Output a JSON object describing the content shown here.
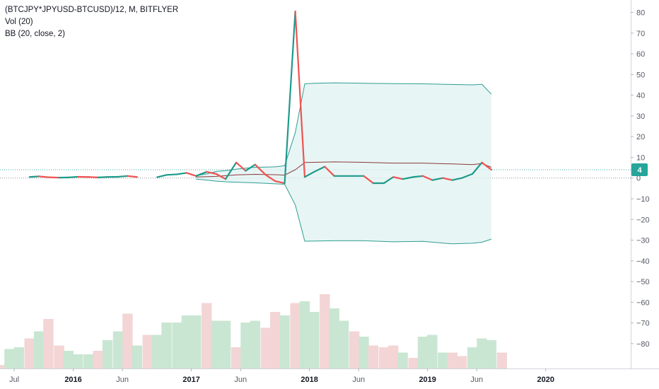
{
  "legend": {
    "symbol": "(BTCJPY*JPYUSD-BTCUSD)/12, M, BITFLYER",
    "volume": "Vol (20)",
    "bb": "BB (20, close, 2)"
  },
  "colors": {
    "up": "#26a69a",
    "down": "#ef5350",
    "line_up": "#1e9a8a",
    "bb_band": "#2e9e92",
    "bb_basis": "#8b3a3a",
    "bb_fill": "#e0f2f1",
    "vol_up": "#c9e6d2",
    "vol_down": "#f3d5d5",
    "badge": "#26a69a"
  },
  "chart_data": {
    "type": "line",
    "y_ticks": [
      80,
      70,
      60,
      50,
      40,
      30,
      20,
      10,
      0,
      -10,
      -20,
      -30,
      -40,
      -50,
      -60,
      -70,
      -80
    ],
    "y_tick_labels": [
      "80",
      "70",
      "60",
      "50",
      "40",
      "30",
      "20",
      "10",
      "0",
      "−10",
      "−20",
      "−30",
      "−40",
      "−50",
      "−60",
      "−70",
      "−80"
    ],
    "ylim": [
      -92,
      86
    ],
    "x_ticks": [
      {
        "t": 2015.5,
        "label": "Jul",
        "year": false
      },
      {
        "t": 2016.0,
        "label": "2016",
        "year": true
      },
      {
        "t": 2016.4167,
        "label": "Jun",
        "year": false
      },
      {
        "t": 2017.0,
        "label": "2017",
        "year": true
      },
      {
        "t": 2017.4167,
        "label": "Jun",
        "year": false
      },
      {
        "t": 2018.0,
        "label": "2018",
        "year": true
      },
      {
        "t": 2018.4167,
        "label": "Jun",
        "year": false
      },
      {
        "t": 2019.0,
        "label": "2019",
        "year": true
      },
      {
        "t": 2019.4167,
        "label": "Jun",
        "year": false
      },
      {
        "t": 2020.0,
        "label": "2020",
        "year": true
      }
    ],
    "xlim": [
      2015.38,
      2020.72
    ],
    "price_segments": [
      [
        [
          2015.63,
          0.5
        ],
        [
          2015.71,
          0.8
        ],
        [
          2015.79,
          0.4
        ],
        [
          2015.88,
          0.2
        ],
        [
          2015.96,
          0.3
        ],
        [
          2016.04,
          0.6
        ],
        [
          2016.13,
          0.5
        ],
        [
          2016.21,
          0.3
        ],
        [
          2016.29,
          0.5
        ],
        [
          2016.38,
          0.6
        ],
        [
          2016.46,
          1.0
        ],
        [
          2016.54,
          0.5
        ]
      ],
      [
        [
          2016.71,
          0.4
        ],
        [
          2016.79,
          1.5
        ],
        [
          2016.88,
          1.8
        ],
        [
          2016.96,
          2.5
        ],
        [
          2017.04,
          1.0
        ],
        [
          2017.13,
          3.0
        ],
        [
          2017.21,
          2.0
        ],
        [
          2017.29,
          -0.5
        ],
        [
          2017.38,
          7.5
        ],
        [
          2017.46,
          3.5
        ],
        [
          2017.54,
          6.5
        ],
        [
          2017.63,
          1.5
        ],
        [
          2017.71,
          -1.5
        ],
        [
          2017.79,
          -2.5
        ],
        [
          2017.88,
          80.5
        ],
        [
          2017.96,
          0.5
        ],
        [
          2018.04,
          3.0
        ],
        [
          2018.13,
          5.5
        ],
        [
          2018.21,
          1.0
        ],
        [
          2018.29,
          1.0
        ],
        [
          2018.38,
          1.0
        ],
        [
          2018.46,
          1.0
        ],
        [
          2018.54,
          -2.5
        ],
        [
          2018.63,
          -2.5
        ],
        [
          2018.71,
          0.5
        ],
        [
          2018.79,
          -0.5
        ],
        [
          2018.88,
          0.5
        ],
        [
          2018.96,
          1.0
        ],
        [
          2019.04,
          -1.0
        ],
        [
          2019.13,
          0.0
        ],
        [
          2019.21,
          -1.0
        ],
        [
          2019.29,
          0.0
        ],
        [
          2019.38,
          2.0
        ],
        [
          2019.46,
          7.5
        ],
        [
          2019.54,
          4.0
        ]
      ]
    ],
    "bb_upper": [
      [
        2017.04,
        1.2
      ],
      [
        2017.13,
        2.0
      ],
      [
        2017.21,
        3.2
      ],
      [
        2017.29,
        3.6
      ],
      [
        2017.38,
        4.3
      ],
      [
        2017.46,
        4.8
      ],
      [
        2017.54,
        5.2
      ],
      [
        2017.63,
        5.3
      ],
      [
        2017.71,
        5.4
      ],
      [
        2017.79,
        6.0
      ],
      [
        2017.88,
        22.0
      ],
      [
        2017.96,
        45.5
      ],
      [
        2018.04,
        45.8
      ],
      [
        2018.21,
        46.0
      ],
      [
        2018.46,
        45.8
      ],
      [
        2018.71,
        45.6
      ],
      [
        2018.96,
        45.5
      ],
      [
        2019.21,
        45.2
      ],
      [
        2019.38,
        45.0
      ],
      [
        2019.46,
        45.3
      ],
      [
        2019.54,
        40.5
      ]
    ],
    "bb_basis": [
      [
        2017.04,
        0.5
      ],
      [
        2017.21,
        0.8
      ],
      [
        2017.38,
        1.5
      ],
      [
        2017.54,
        1.8
      ],
      [
        2017.71,
        1.6
      ],
      [
        2017.79,
        1.4
      ],
      [
        2017.88,
        4.0
      ],
      [
        2017.96,
        7.5
      ],
      [
        2018.21,
        7.8
      ],
      [
        2018.46,
        7.6
      ],
      [
        2018.71,
        7.2
      ],
      [
        2018.96,
        7.2
      ],
      [
        2019.21,
        6.8
      ],
      [
        2019.38,
        6.5
      ],
      [
        2019.46,
        7.0
      ],
      [
        2019.54,
        5.2
      ]
    ],
    "bb_lower": [
      [
        2017.04,
        -0.5
      ],
      [
        2017.13,
        -1.0
      ],
      [
        2017.21,
        -1.5
      ],
      [
        2017.29,
        -1.8
      ],
      [
        2017.38,
        -2.0
      ],
      [
        2017.54,
        -2.3
      ],
      [
        2017.71,
        -2.8
      ],
      [
        2017.79,
        -3.0
      ],
      [
        2017.88,
        -13.0
      ],
      [
        2017.96,
        -30.5
      ],
      [
        2018.21,
        -30.3
      ],
      [
        2018.46,
        -30.3
      ],
      [
        2018.71,
        -30.8
      ],
      [
        2018.96,
        -30.6
      ],
      [
        2019.21,
        -31.8
      ],
      [
        2019.38,
        -31.5
      ],
      [
        2019.46,
        -31.0
      ],
      [
        2019.54,
        -29.5
      ]
    ],
    "volume": [
      {
        "t": 2015.38,
        "v": 2,
        "up": false
      },
      {
        "t": 2015.46,
        "v": 11,
        "up": true
      },
      {
        "t": 2015.54,
        "v": 12,
        "up": true
      },
      {
        "t": 2015.63,
        "v": 17,
        "up": false
      },
      {
        "t": 2015.71,
        "v": 21,
        "up": true
      },
      {
        "t": 2015.79,
        "v": 28,
        "up": false
      },
      {
        "t": 2015.88,
        "v": 13,
        "up": false
      },
      {
        "t": 2015.96,
        "v": 10,
        "up": true
      },
      {
        "t": 2016.04,
        "v": 8,
        "up": true
      },
      {
        "t": 2016.13,
        "v": 8,
        "up": true
      },
      {
        "t": 2016.21,
        "v": 10,
        "up": false
      },
      {
        "t": 2016.29,
        "v": 16,
        "up": true
      },
      {
        "t": 2016.38,
        "v": 21,
        "up": true
      },
      {
        "t": 2016.46,
        "v": 31,
        "up": false
      },
      {
        "t": 2016.54,
        "v": 13,
        "up": true
      },
      {
        "t": 2016.63,
        "v": 19,
        "up": false
      },
      {
        "t": 2016.71,
        "v": 19,
        "up": true
      },
      {
        "t": 2016.79,
        "v": 26,
        "up": true
      },
      {
        "t": 2016.88,
        "v": 26,
        "up": true
      },
      {
        "t": 2016.96,
        "v": 30,
        "up": true
      },
      {
        "t": 2017.04,
        "v": 30,
        "up": true
      },
      {
        "t": 2017.13,
        "v": 37,
        "up": false
      },
      {
        "t": 2017.21,
        "v": 27,
        "up": true
      },
      {
        "t": 2017.29,
        "v": 27,
        "up": true
      },
      {
        "t": 2017.38,
        "v": 12,
        "up": false
      },
      {
        "t": 2017.46,
        "v": 26,
        "up": true
      },
      {
        "t": 2017.54,
        "v": 27,
        "up": true
      },
      {
        "t": 2017.63,
        "v": 23,
        "up": false
      },
      {
        "t": 2017.71,
        "v": 32,
        "up": false
      },
      {
        "t": 2017.79,
        "v": 30,
        "up": true
      },
      {
        "t": 2017.88,
        "v": 37,
        "up": false
      },
      {
        "t": 2017.96,
        "v": 38,
        "up": true
      },
      {
        "t": 2018.04,
        "v": 32,
        "up": true
      },
      {
        "t": 2018.13,
        "v": 42,
        "up": false
      },
      {
        "t": 2018.21,
        "v": 34,
        "up": true
      },
      {
        "t": 2018.29,
        "v": 27,
        "up": true
      },
      {
        "t": 2018.38,
        "v": 21,
        "up": false
      },
      {
        "t": 2018.46,
        "v": 18,
        "up": true
      },
      {
        "t": 2018.54,
        "v": 13,
        "up": false
      },
      {
        "t": 2018.63,
        "v": 12,
        "up": false
      },
      {
        "t": 2018.71,
        "v": 13,
        "up": false
      },
      {
        "t": 2018.79,
        "v": 9,
        "up": true
      },
      {
        "t": 2018.88,
        "v": 6,
        "up": false
      },
      {
        "t": 2018.96,
        "v": 18,
        "up": true
      },
      {
        "t": 2019.04,
        "v": 19,
        "up": true
      },
      {
        "t": 2019.13,
        "v": 9,
        "up": true
      },
      {
        "t": 2019.21,
        "v": 9,
        "up": false
      },
      {
        "t": 2019.29,
        "v": 7,
        "up": false
      },
      {
        "t": 2019.38,
        "v": 12,
        "up": true
      },
      {
        "t": 2019.46,
        "v": 17,
        "up": true
      },
      {
        "t": 2019.54,
        "v": 16,
        "up": true
      },
      {
        "t": 2019.63,
        "v": 9,
        "up": false
      }
    ],
    "volume_scale_max": 52,
    "last_value": 4,
    "last_value_label": "4"
  }
}
